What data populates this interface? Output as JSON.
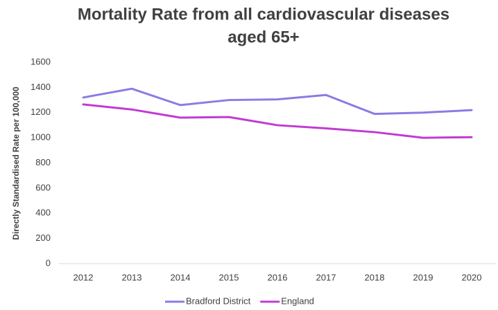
{
  "chart_data": {
    "type": "line",
    "title": [
      "Mortality Rate from all cardiovascular diseases",
      "aged 65+"
    ],
    "y_label": "Directly Standardised Rate per 100,000",
    "categories": [
      "2012",
      "2013",
      "2014",
      "2015",
      "2016",
      "2017",
      "2018",
      "2019",
      "2020"
    ],
    "series": [
      {
        "name": "Bradford District",
        "color": "#8b7be3",
        "values": [
          1320,
          1390,
          1260,
          1300,
          1305,
          1340,
          1190,
          1200,
          1220
        ]
      },
      {
        "name": "England",
        "color": "#c13ad4",
        "values": [
          1265,
          1225,
          1160,
          1165,
          1100,
          1075,
          1045,
          1000,
          1005
        ]
      }
    ],
    "ylim": [
      0,
      1600
    ],
    "yticks": [
      0,
      200,
      400,
      600,
      800,
      1000,
      1200,
      1400,
      1600
    ],
    "grid": false,
    "legend": "bottom"
  }
}
